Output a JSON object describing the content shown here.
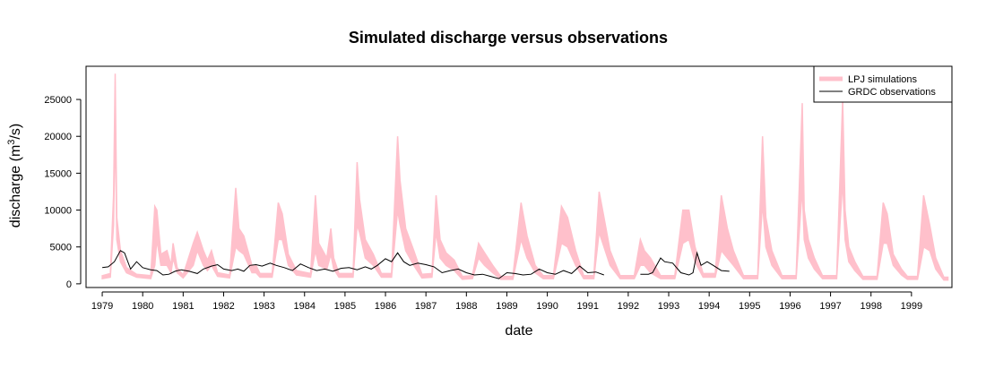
{
  "chart_data": {
    "type": "line",
    "title": "Simulated discharge versus observations",
    "xlabel": "date",
    "ylabel": "discharge (m",
    "ylabel_sup": "3",
    "ylabel_end": "/s)",
    "xlim": [
      1978.6,
      2000.0
    ],
    "ylim": [
      -500,
      29500
    ],
    "x_ticks": [
      1979,
      1980,
      1981,
      1982,
      1983,
      1984,
      1985,
      1986,
      1987,
      1988,
      1989,
      1990,
      1991,
      1992,
      1993,
      1994,
      1995,
      1996,
      1997,
      1998,
      1999
    ],
    "y_ticks": [
      0,
      5000,
      10000,
      15000,
      20000,
      25000
    ],
    "legend_position": "top-right",
    "series": [
      {
        "name": "LPJ simulations",
        "color": "#ffc0cb",
        "style": "band",
        "x": [
          1979.0,
          1979.2,
          1979.28,
          1979.32,
          1979.36,
          1979.45,
          1979.6,
          1979.85,
          1980.2,
          1980.3,
          1980.35,
          1980.45,
          1980.6,
          1980.7,
          1980.75,
          1980.85,
          1981.0,
          1981.25,
          1981.35,
          1981.5,
          1981.6,
          1981.7,
          1981.85,
          1982.15,
          1982.3,
          1982.38,
          1982.5,
          1982.7,
          1982.8,
          1982.9,
          1983.2,
          1983.35,
          1983.45,
          1983.6,
          1983.8,
          1984.15,
          1984.27,
          1984.35,
          1984.55,
          1984.65,
          1984.72,
          1984.85,
          1985.2,
          1985.3,
          1985.36,
          1985.5,
          1985.7,
          1985.9,
          1986.15,
          1986.3,
          1986.36,
          1986.5,
          1986.7,
          1986.9,
          1987.15,
          1987.25,
          1987.35,
          1987.5,
          1987.7,
          1987.9,
          1988.15,
          1988.3,
          1988.45,
          1988.65,
          1988.85,
          1989.15,
          1989.35,
          1989.5,
          1989.7,
          1989.9,
          1990.15,
          1990.35,
          1990.5,
          1990.7,
          1990.9,
          1991.15,
          1991.28,
          1991.4,
          1991.55,
          1991.8,
          1992.15,
          1992.3,
          1992.4,
          1992.55,
          1992.8,
          1993.15,
          1993.35,
          1993.5,
          1993.65,
          1993.85,
          1994.15,
          1994.3,
          1994.45,
          1994.6,
          1994.85,
          1995.2,
          1995.32,
          1995.4,
          1995.55,
          1995.8,
          1996.15,
          1996.3,
          1996.35,
          1996.45,
          1996.6,
          1996.8,
          1997.15,
          1997.3,
          1997.36,
          1997.45,
          1997.6,
          1997.8,
          1998.15,
          1998.3,
          1998.4,
          1998.55,
          1998.75,
          1998.9,
          1999.15,
          1999.3,
          1999.45,
          1999.6,
          1999.8,
          1999.9
        ],
        "low": [
          700,
          900,
          8000,
          22000,
          6000,
          3000,
          1500,
          900,
          700,
          2500,
          6000,
          2500,
          2500,
          1500,
          3500,
          1500,
          800,
          2500,
          4500,
          2500,
          1800,
          2500,
          1000,
          800,
          5000,
          4500,
          4000,
          1500,
          1500,
          900,
          900,
          6000,
          6000,
          2500,
          1200,
          900,
          4500,
          2500,
          2000,
          4000,
          2000,
          900,
          900,
          8000,
          7000,
          3500,
          2500,
          900,
          900,
          10000,
          8000,
          4500,
          2500,
          800,
          900,
          7000,
          3500,
          2500,
          1800,
          600,
          700,
          3500,
          2500,
          1500,
          600,
          600,
          6000,
          3500,
          1500,
          700,
          700,
          5500,
          5000,
          2500,
          700,
          700,
          7000,
          5000,
          2500,
          700,
          700,
          2500,
          2500,
          1500,
          700,
          700,
          5500,
          6000,
          3000,
          900,
          900,
          4500,
          3500,
          2500,
          700,
          700,
          11000,
          5000,
          2500,
          700,
          700,
          13000,
          6000,
          3500,
          2000,
          700,
          700,
          14000,
          6000,
          3000,
          1800,
          600,
          600,
          5500,
          5500,
          2500,
          1200,
          600,
          600,
          5000,
          4500,
          2000,
          500,
          500
        ],
        "high": [
          1100,
          1400,
          12000,
          28500,
          9000,
          4500,
          2200,
          1300,
          1100,
          10500,
          10000,
          4000,
          4500,
          2500,
          5500,
          2200,
          1200,
          5500,
          7000,
          4500,
          3200,
          4500,
          1500,
          1200,
          13000,
          7500,
          6500,
          2500,
          2500,
          1400,
          1400,
          11000,
          9500,
          4000,
          1800,
          1400,
          12000,
          5500,
          3500,
          7500,
          3500,
          1400,
          1400,
          16500,
          11500,
          6000,
          4000,
          1400,
          1400,
          20000,
          14000,
          7500,
          4500,
          1300,
          1400,
          12000,
          6000,
          4200,
          3200,
          1000,
          1100,
          5500,
          4200,
          2500,
          1000,
          1000,
          11000,
          6500,
          2500,
          1100,
          1100,
          10500,
          9000,
          4500,
          1100,
          1100,
          12500,
          9000,
          4500,
          1100,
          1100,
          6000,
          4500,
          3500,
          1100,
          1100,
          10000,
          10000,
          5000,
          1400,
          1400,
          12000,
          7500,
          4500,
          1100,
          1100,
          20000,
          9000,
          4500,
          1100,
          1100,
          24500,
          10000,
          6000,
          3500,
          1100,
          1100,
          25000,
          10000,
          5000,
          3000,
          1000,
          1000,
          11000,
          9500,
          4000,
          2000,
          1000,
          1000,
          12000,
          8000,
          3500,
          900,
          900
        ]
      },
      {
        "name": "GRDC observations",
        "color": "#000000",
        "style": "line",
        "segments": [
          {
            "x": [
              1979.0,
              1979.15,
              1979.3,
              1979.45,
              1979.55,
              1979.7,
              1979.85,
              1980.0,
              1980.2,
              1980.35,
              1980.5,
              1980.65,
              1980.8,
              1980.95,
              1981.15,
              1981.35,
              1981.5,
              1981.7,
              1981.85,
              1982.0,
              1982.2,
              1982.35,
              1982.5,
              1982.65,
              1982.8,
              1982.95,
              1983.15,
              1983.3,
              1983.5,
              1983.7,
              1983.9,
              1984.1,
              1984.3,
              1984.5,
              1984.7,
              1984.9,
              1985.1,
              1985.3,
              1985.5,
              1985.65,
              1985.8,
              1986.0,
              1986.15,
              1986.3,
              1986.45,
              1986.6,
              1986.8,
              1987.0,
              1987.2,
              1987.4,
              1987.6,
              1987.8,
              1988.0,
              1988.2,
              1988.4,
              1988.6,
              1988.8,
              1989.0,
              1989.2,
              1989.4,
              1989.6,
              1989.8,
              1990.0,
              1990.2,
              1990.4,
              1990.6,
              1990.8,
              1991.0,
              1991.2,
              1991.4
            ],
            "y": [
              2200,
              2300,
              3000,
              4500,
              4200,
              2000,
              3000,
              2200,
              1900,
              1800,
              1200,
              1300,
              1700,
              1900,
              1700,
              1400,
              2000,
              2400,
              2600,
              2000,
              1800,
              2000,
              1700,
              2500,
              2600,
              2400,
              2800,
              2500,
              2200,
              1800,
              2700,
              2200,
              1800,
              2000,
              1700,
              2100,
              2200,
              1900,
              2300,
              2000,
              2500,
              3400,
              3000,
              4200,
              3000,
              2500,
              2800,
              2600,
              2300,
              1500,
              1800,
              2000,
              1500,
              1200,
              1300,
              1000,
              700,
              1500,
              1400,
              1200,
              1300,
              2000,
              1500,
              1300,
              1800,
              1400,
              2400,
              1500,
              1600,
              1200
            ]
          },
          {
            "x": [
              1992.3,
              1992.5,
              1992.6,
              1992.7,
              1992.8,
              1992.9,
              1993.1,
              1993.3,
              1993.5,
              1993.6,
              1993.7,
              1993.8,
              1993.95,
              1994.1,
              1994.3,
              1994.5
            ],
            "y": [
              1300,
              1300,
              1500,
              2500,
              3500,
              3000,
              2800,
              1500,
              1200,
              1500,
              4200,
              2500,
              3000,
              2500,
              1800,
              1700
            ]
          }
        ]
      }
    ]
  }
}
